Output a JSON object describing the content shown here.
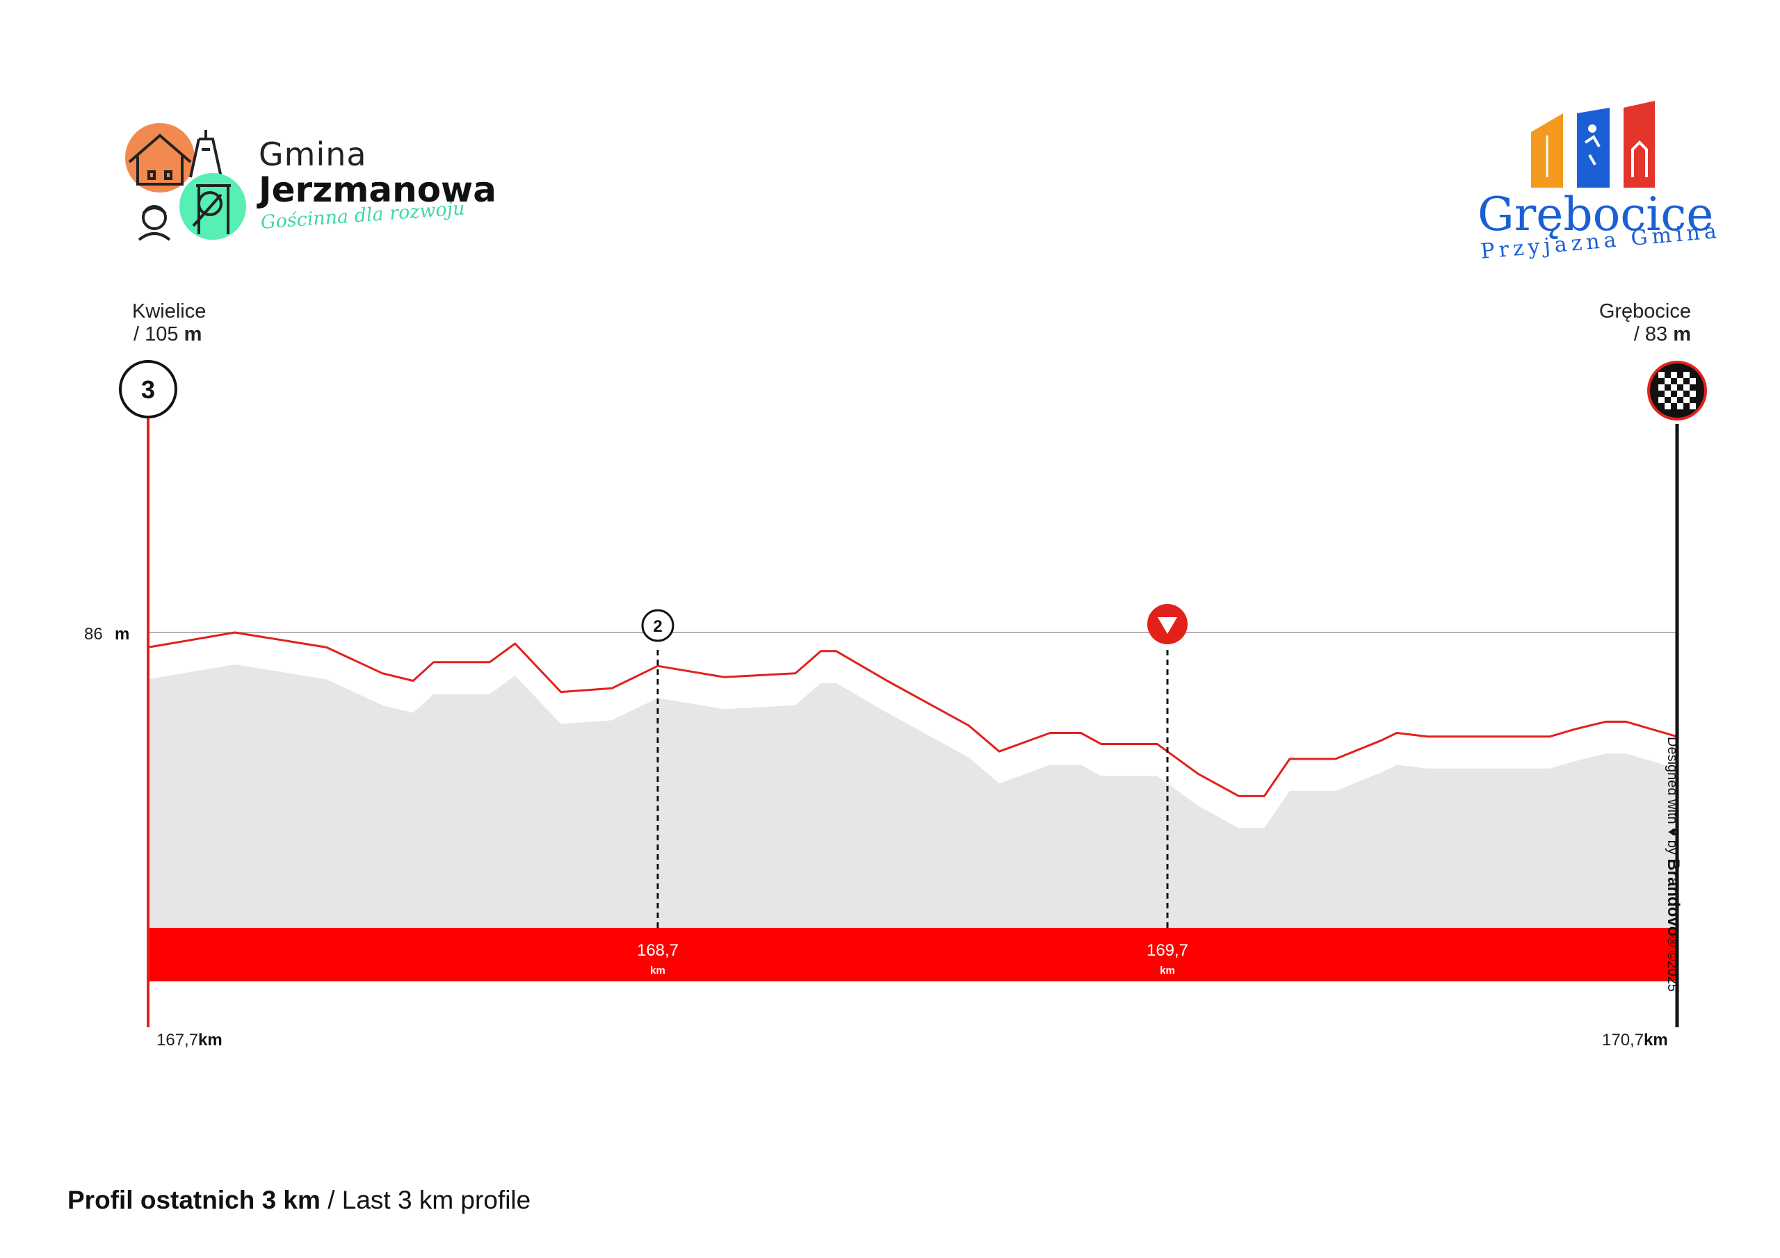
{
  "header": {
    "left_logo": {
      "title": "Gmina",
      "name": "Jerzmanowa",
      "tagline": "Gościnna dla rozwoju",
      "icons": [
        "house-icon",
        "mine-tower-icon",
        "boy-face-icon",
        "mine-wheel-icon"
      ],
      "colors": {
        "orange": "#f2894f",
        "mint": "#56efb4"
      }
    },
    "right_logo": {
      "name": "Grębocice",
      "tagline": "Przyjazna Gmina",
      "colors": {
        "orange": "#f39a1e",
        "blue": "#1b5fd6",
        "red": "#e3352b"
      }
    }
  },
  "start": {
    "name": "Kwielice",
    "alt_prefix": "/ 105",
    "alt_unit": "m",
    "marker": "3"
  },
  "finish": {
    "name": "Grębocice",
    "alt_prefix": "/ 83",
    "alt_unit": "m",
    "marker_icon": "checkered-flag-icon"
  },
  "colors": {
    "profile_line": "#e3211b",
    "profile_fill": "#e6e6e6",
    "distance_band": "#ff0000",
    "start_pole": "#e3211b",
    "finish_pole": "#111111"
  },
  "chart_data": {
    "type": "area",
    "title": "",
    "xlabel": "",
    "ylabel": "",
    "x_unit": "km",
    "y_unit": "m",
    "xlim": [
      167.7,
      170.7
    ],
    "reference_line": {
      "value": 86,
      "label": "86",
      "unit": "m"
    },
    "x": [
      167.7,
      167.87,
      168.05,
      168.16,
      168.22,
      168.26,
      168.37,
      168.42,
      168.51,
      168.61,
      168.7,
      168.83,
      168.97,
      169.02,
      169.05,
      169.15,
      169.31,
      169.37,
      169.47,
      169.53,
      169.57,
      169.6,
      169.68,
      169.76,
      169.84,
      169.89,
      169.94,
      170.03,
      170.12,
      170.15,
      170.21,
      170.45,
      170.5,
      170.56,
      170.6,
      170.7
    ],
    "y": [
      85.6,
      86.0,
      85.6,
      84.9,
      84.7,
      85.2,
      85.2,
      85.7,
      84.4,
      84.5,
      85.1,
      84.8,
      84.9,
      85.5,
      85.5,
      84.7,
      83.5,
      82.8,
      83.3,
      83.3,
      83.0,
      83.0,
      83.0,
      82.2,
      81.6,
      81.6,
      82.6,
      82.6,
      83.1,
      83.3,
      83.2,
      83.2,
      83.4,
      83.6,
      83.6,
      83.2
    ],
    "intermediate_km": [
      {
        "value": "168,7",
        "unit": "km",
        "marker": "2"
      },
      {
        "value": "169,7",
        "unit": "km",
        "marker_icon": "descent-triangle-icon"
      }
    ],
    "x_start_label": {
      "value": "167,7",
      "unit": "km"
    },
    "x_end_label": {
      "value": "170,7",
      "unit": "km"
    }
  },
  "credit": {
    "text": "Designed with ♥ by",
    "brand": "Brandovo",
    "year": "® ©2025"
  },
  "footer": {
    "title_bold": "Profil ostatnich 3 km",
    "title_rest": " / Last 3 km profile"
  }
}
